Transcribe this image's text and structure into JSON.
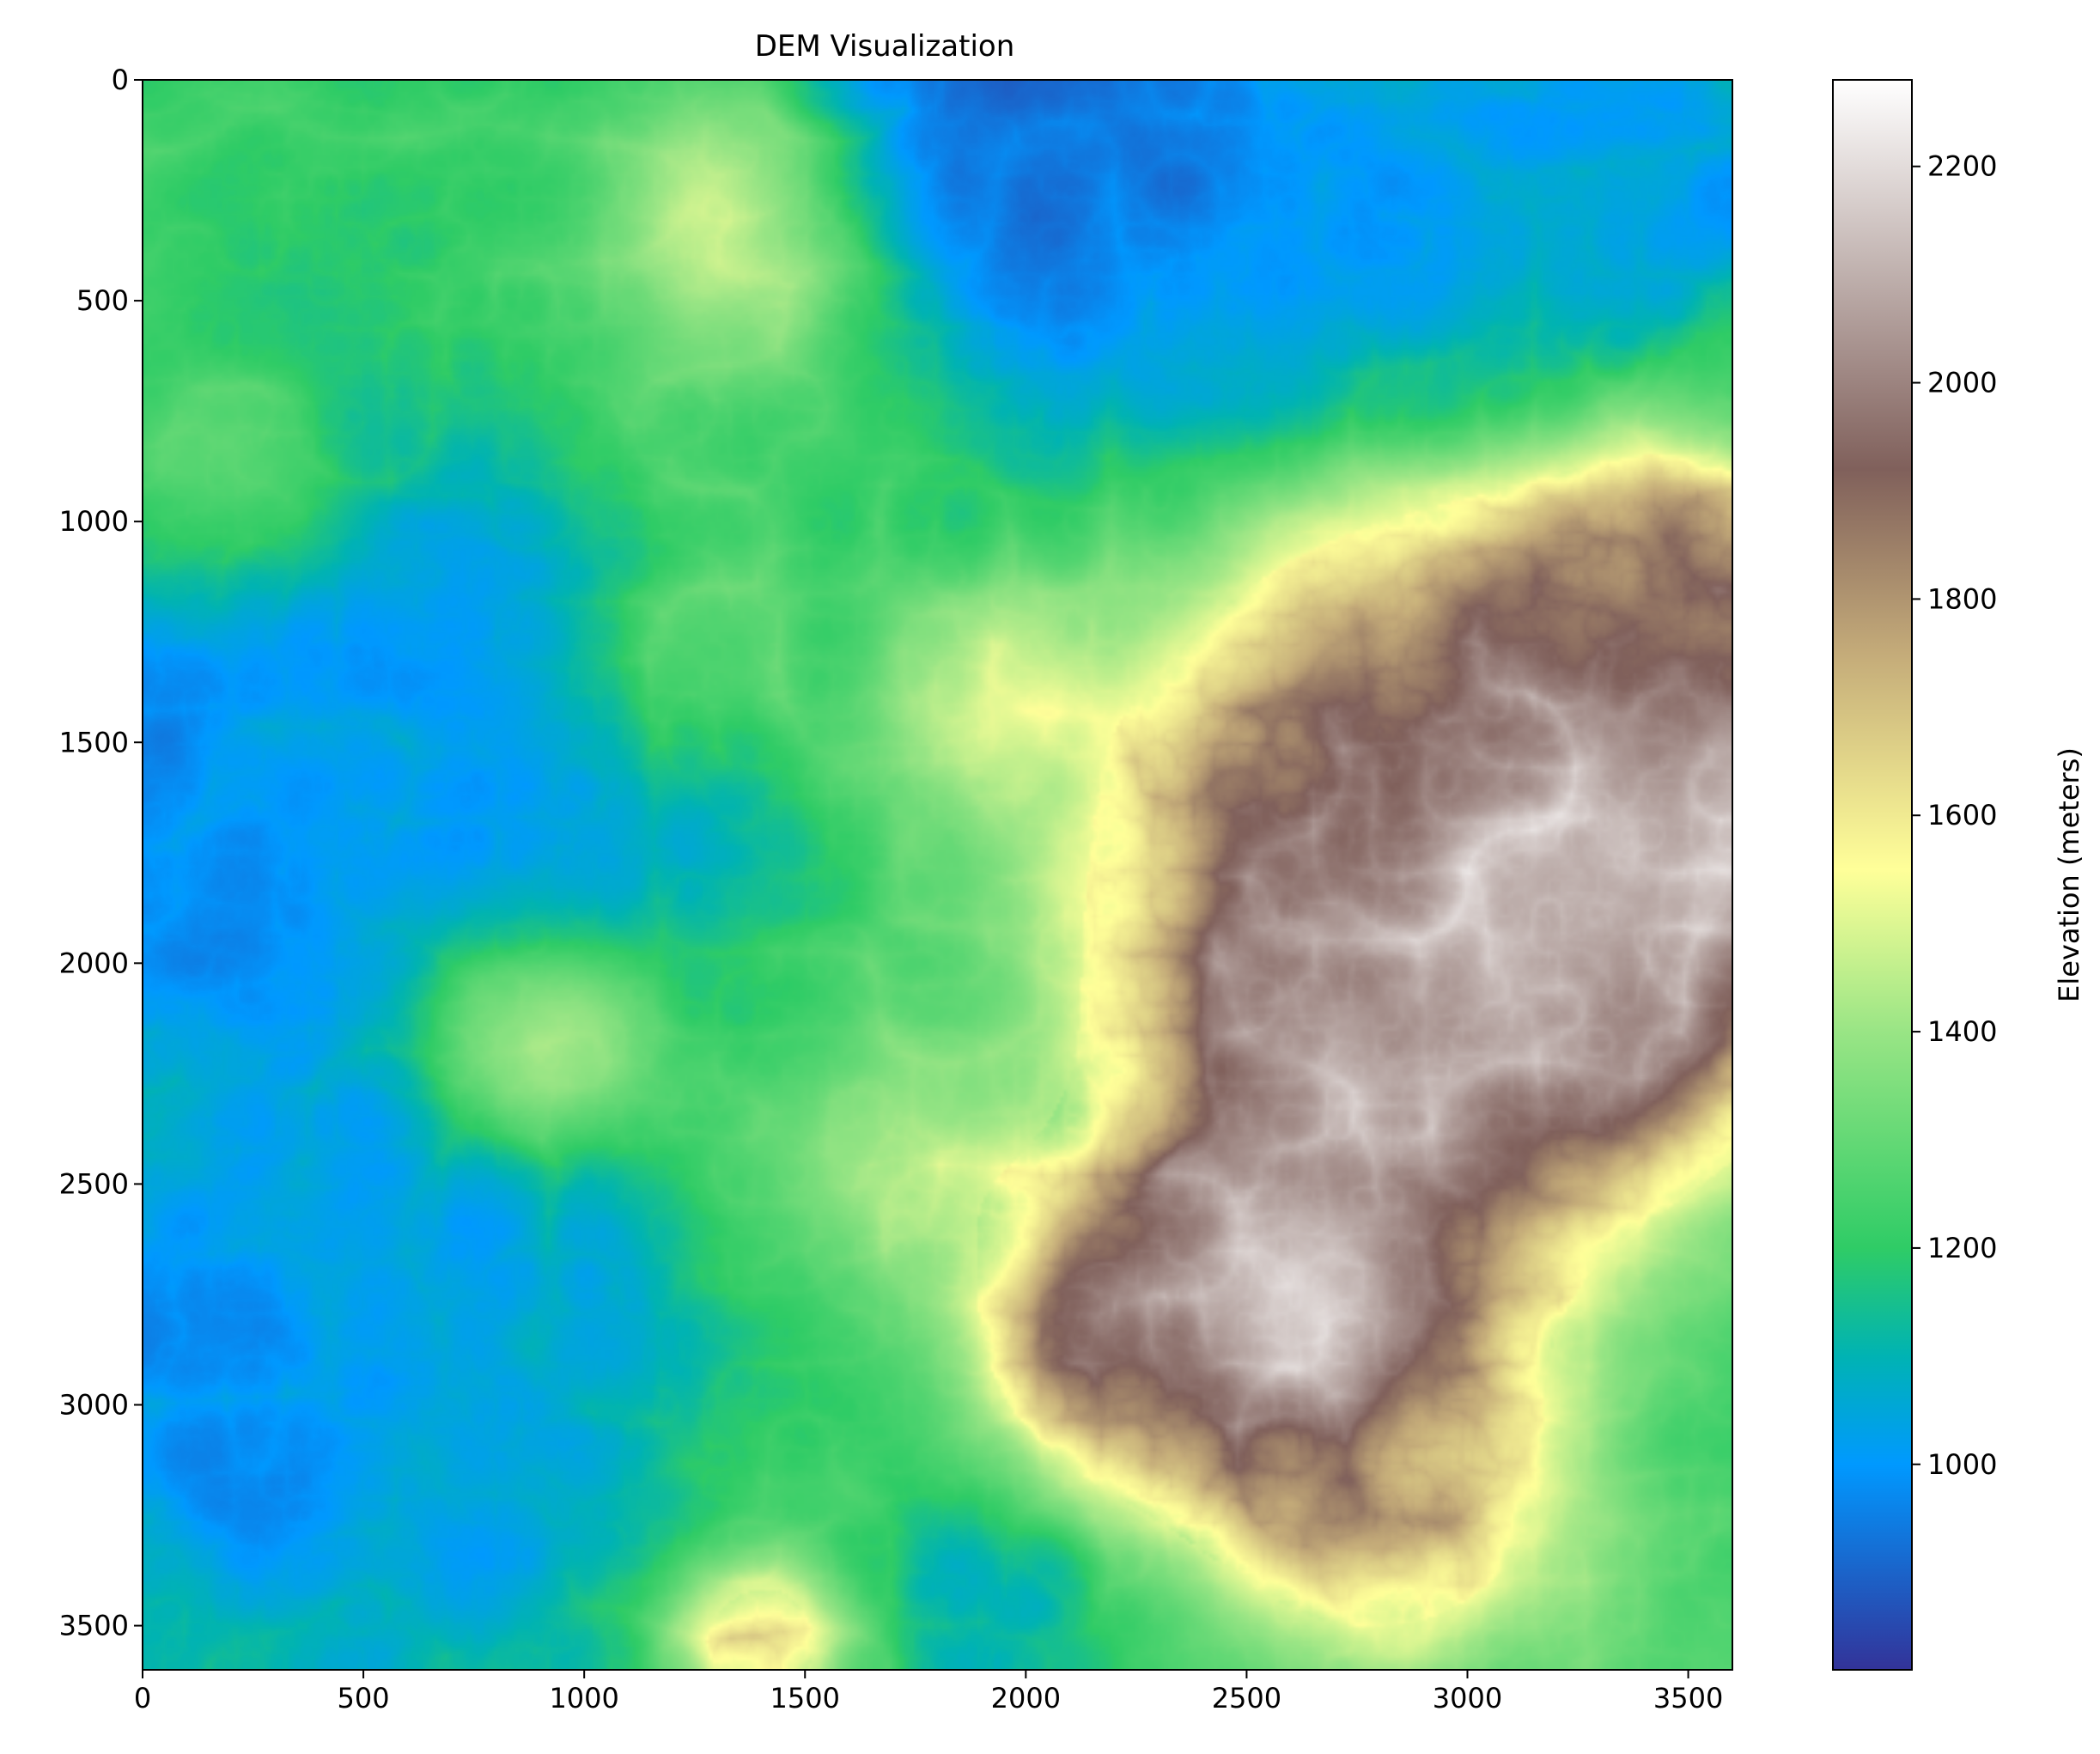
{
  "chart_data": {
    "type": "heatmap",
    "title": "DEM Visualization",
    "xlabel": "",
    "ylabel": "",
    "xlim": [
      0,
      3600
    ],
    "ylim": [
      3600,
      0
    ],
    "xticks": [
      0,
      500,
      1000,
      1500,
      2000,
      2500,
      3000,
      3500
    ],
    "yticks": [
      0,
      500,
      1000,
      1500,
      2000,
      2500,
      3000,
      3500
    ],
    "colormap": "terrain",
    "colorbar": {
      "label": "Elevation (meters)",
      "range": [
        810,
        2280
      ],
      "ticks": [
        1000,
        1200,
        1400,
        1600,
        1800,
        2000,
        2200
      ],
      "stops": [
        {
          "value": 810,
          "color": "#333399"
        },
        {
          "value": 1000,
          "color": "#0099ff"
        },
        {
          "value": 1100,
          "color": "#00b3b3"
        },
        {
          "value": 1200,
          "color": "#2fcc66"
        },
        {
          "value": 1400,
          "color": "#99e585"
        },
        {
          "value": 1550,
          "color": "#ffff99"
        },
        {
          "value": 1750,
          "color": "#c4ab79"
        },
        {
          "value": 1920,
          "color": "#80605b"
        },
        {
          "value": 2100,
          "color": "#bfb0ad"
        },
        {
          "value": 2280,
          "color": "#ffffff"
        }
      ]
    },
    "grid": false,
    "legend": "none",
    "elevation_features": [
      {
        "kind": "valley",
        "x": 1950,
        "y": 80,
        "r": 300,
        "value": 880
      },
      {
        "kind": "valley",
        "x": 2350,
        "y": 400,
        "r": 420,
        "value": 960
      },
      {
        "kind": "valley",
        "x": 3000,
        "y": 420,
        "r": 330,
        "value": 1000
      },
      {
        "kind": "valley",
        "x": 3450,
        "y": 250,
        "r": 260,
        "value": 1000
      },
      {
        "kind": "valley",
        "x": 80,
        "y": 1550,
        "r": 360,
        "value": 1000
      },
      {
        "kind": "valley",
        "x": 500,
        "y": 1400,
        "r": 420,
        "value": 1040
      },
      {
        "kind": "valley",
        "x": 900,
        "y": 1650,
        "r": 420,
        "value": 1080
      },
      {
        "kind": "valley",
        "x": 250,
        "y": 2900,
        "r": 520,
        "value": 1020
      },
      {
        "kind": "valley",
        "x": 850,
        "y": 2950,
        "r": 420,
        "value": 1080
      },
      {
        "kind": "valley",
        "x": 1950,
        "y": 3450,
        "r": 240,
        "value": 1040
      },
      {
        "kind": "valley",
        "x": 3400,
        "y": 2900,
        "r": 260,
        "value": 1120
      },
      {
        "kind": "hill",
        "x": 1370,
        "y": 320,
        "r": 230,
        "value": 1550
      },
      {
        "kind": "hill",
        "x": 900,
        "y": 2150,
        "r": 170,
        "value": 1650
      },
      {
        "kind": "hill",
        "x": 1250,
        "y": 1330,
        "r": 170,
        "value": 1420
      },
      {
        "kind": "hill",
        "x": 1900,
        "y": 1380,
        "r": 160,
        "value": 1420
      },
      {
        "kind": "hill",
        "x": 200,
        "y": 960,
        "r": 180,
        "value": 1450
      },
      {
        "kind": "hill",
        "x": 1700,
        "y": 2450,
        "r": 200,
        "value": 1430
      },
      {
        "kind": "hill",
        "x": 1400,
        "y": 3530,
        "r": 140,
        "value": 1700
      },
      {
        "kind": "hill",
        "x": 3000,
        "y": 1600,
        "r": 500,
        "value": 1800
      },
      {
        "kind": "hill",
        "x": 3300,
        "y": 1750,
        "r": 380,
        "value": 1950
      },
      {
        "kind": "hill",
        "x": 3500,
        "y": 1650,
        "r": 220,
        "value": 2050
      },
      {
        "kind": "hill",
        "x": 3150,
        "y": 1900,
        "r": 200,
        "value": 2150
      },
      {
        "kind": "hill",
        "x": 2850,
        "y": 2100,
        "r": 380,
        "value": 1900
      },
      {
        "kind": "hill",
        "x": 2650,
        "y": 2700,
        "r": 300,
        "value": 1950
      },
      {
        "kind": "hill",
        "x": 2650,
        "y": 2800,
        "r": 150,
        "value": 2250
      },
      {
        "kind": "hill",
        "x": 2250,
        "y": 2850,
        "r": 230,
        "value": 1880
      },
      {
        "kind": "hill",
        "x": 2800,
        "y": 3150,
        "r": 300,
        "value": 1680
      },
      {
        "kind": "hill",
        "x": 3500,
        "y": 1200,
        "r": 220,
        "value": 1750
      }
    ],
    "base_elevation": 1230
  }
}
